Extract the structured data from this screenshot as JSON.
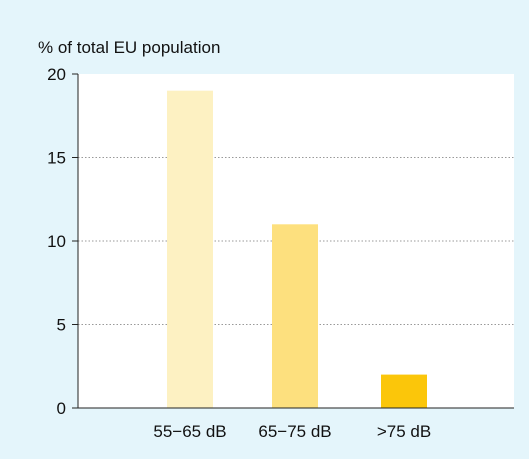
{
  "chart_data": {
    "type": "bar",
    "title": "",
    "ylabel": "% of total EU population",
    "xlabel": "",
    "categories": [
      "55−65 dB",
      "65−75 dB",
      ">75 dB"
    ],
    "values": [
      19,
      11,
      2
    ],
    "bar_colors": [
      "#fdf1c2",
      "#fde07e",
      "#fbc60a"
    ],
    "ylim": [
      0,
      20
    ],
    "yticks": [
      0,
      5,
      10,
      15,
      20
    ],
    "grid": true,
    "grid_style": "dotted-horizontal",
    "legend": "none"
  },
  "colors": {
    "background": "#e4f5fb",
    "plot_background": "#ffffff",
    "axis": "#222222",
    "grid": "#999999"
  }
}
